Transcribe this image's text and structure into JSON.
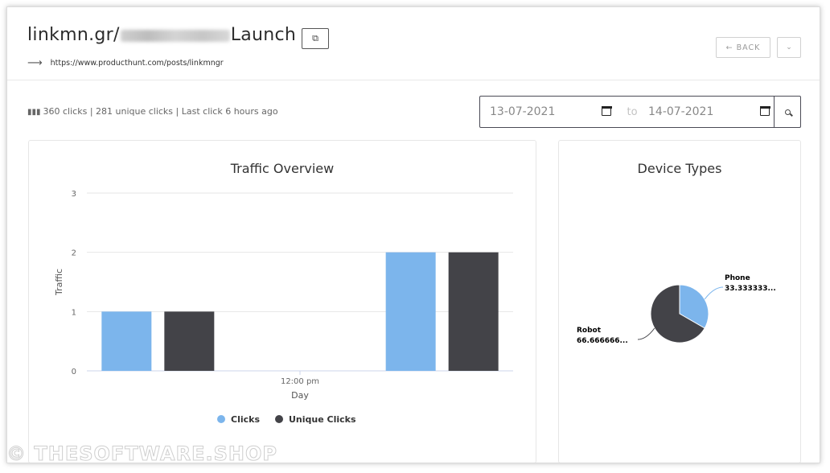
{
  "header": {
    "title_prefix": "linkmn.gr/",
    "title_suffix": "Launch",
    "url": "https://www.producthunt.com/posts/linkmngr",
    "back_label": "← BACK"
  },
  "stats": {
    "text": "360 clicks | 281 unique clicks | Last click 6 hours ago"
  },
  "date_filter": {
    "from": "13-07-2021",
    "to_label": "to",
    "to": "14-07-2021"
  },
  "traffic_card": {
    "title": "Traffic Overview"
  },
  "device_card": {
    "title": "Device Types"
  },
  "watermark": "© THESOFTWARE.SHOP",
  "colors": {
    "clicks": "#7cb5ec",
    "unique_clicks": "#434348"
  },
  "chart_data": [
    {
      "type": "bar",
      "title": "Traffic Overview",
      "xlabel": "Day",
      "ylabel": "Traffic",
      "categories": [
        "",
        "12:00 pm",
        ""
      ],
      "series": [
        {
          "name": "Clicks",
          "values": [
            1,
            null,
            2
          ]
        },
        {
          "name": "Unique Clicks",
          "values": [
            1,
            null,
            2
          ]
        }
      ],
      "ylim": [
        0,
        3
      ],
      "yticks": [
        0,
        1,
        2,
        3
      ],
      "grid": true,
      "legend": "bottom"
    },
    {
      "type": "pie",
      "title": "Device Types",
      "slices": [
        {
          "label": "Phone",
          "value": 33.333333,
          "display": "33.333333..."
        },
        {
          "label": "Robot",
          "value": 66.666666,
          "display": "66.666666..."
        }
      ]
    }
  ]
}
